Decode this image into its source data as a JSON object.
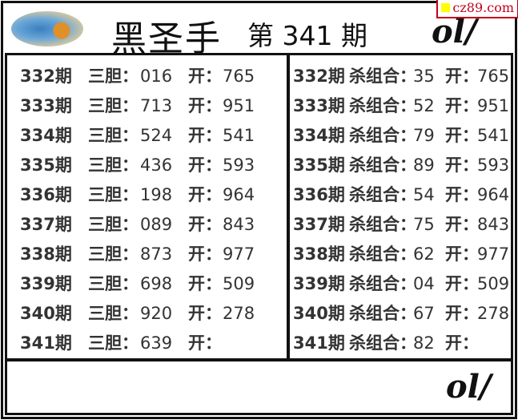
{
  "header": {
    "title": "黑圣手",
    "issue": "第 341 期",
    "watermark": "cz89.com"
  },
  "left": {
    "label": "三胆：",
    "open_label": "开：",
    "rows": [
      {
        "period": "332期",
        "value": "016",
        "result": "765"
      },
      {
        "period": "333期",
        "value": "713",
        "result": "951"
      },
      {
        "period": "334期",
        "value": "524",
        "result": "541"
      },
      {
        "period": "335期",
        "value": "436",
        "result": "593"
      },
      {
        "period": "336期",
        "value": "198",
        "result": "964"
      },
      {
        "period": "337期",
        "value": "089",
        "result": "843"
      },
      {
        "period": "338期",
        "value": "873",
        "result": "977"
      },
      {
        "period": "339期",
        "value": "698",
        "result": "509"
      },
      {
        "period": "340期",
        "value": "920",
        "result": "278"
      },
      {
        "period": "341期",
        "value": "639",
        "result": ""
      }
    ]
  },
  "right": {
    "label": "杀组合：",
    "open_label": "开：",
    "rows": [
      {
        "period": "332期",
        "value": "35",
        "result": "765"
      },
      {
        "period": "333期",
        "value": "52",
        "result": "951"
      },
      {
        "period": "334期",
        "value": "79",
        "result": "541"
      },
      {
        "period": "335期",
        "value": "89",
        "result": "593"
      },
      {
        "period": "336期",
        "value": "54",
        "result": "964"
      },
      {
        "period": "337期",
        "value": "75",
        "result": "843"
      },
      {
        "period": "338期",
        "value": "62",
        "result": "977"
      },
      {
        "period": "339期",
        "value": "04",
        "result": "509"
      },
      {
        "period": "340期",
        "value": "67",
        "result": "278"
      },
      {
        "period": "341期",
        "value": "82",
        "result": ""
      }
    ]
  }
}
